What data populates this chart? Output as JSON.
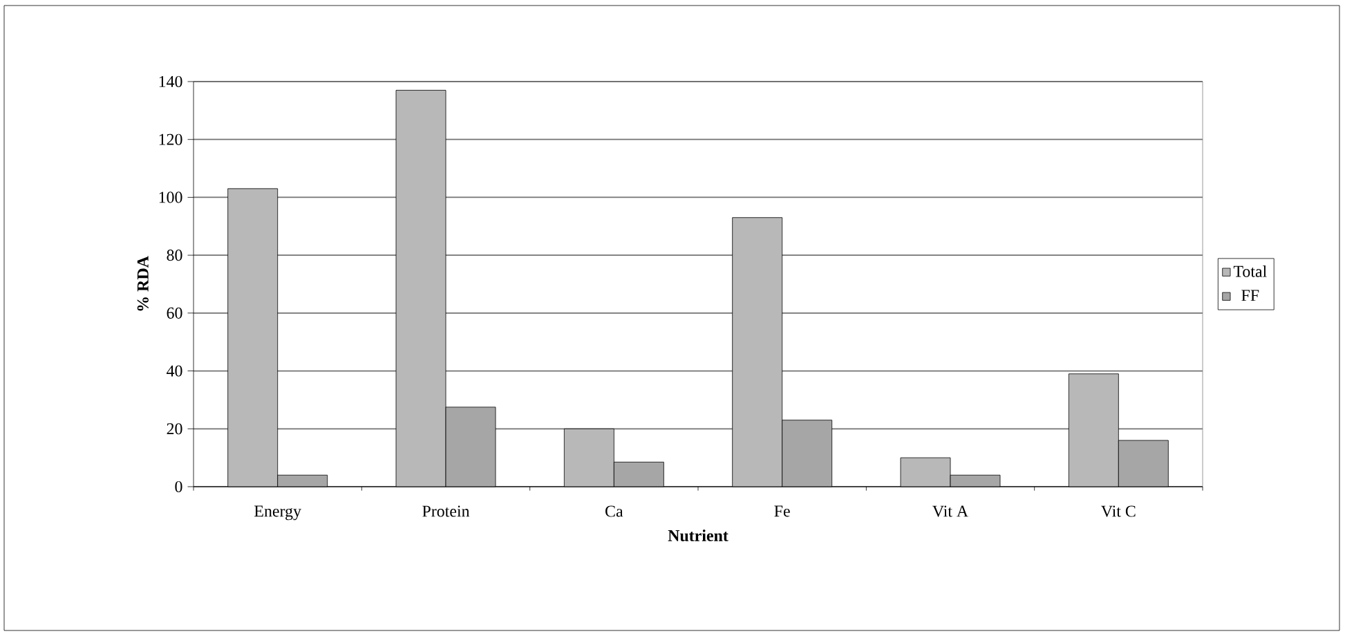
{
  "chart_data": {
    "type": "bar",
    "xlabel": "Nutrient",
    "ylabel": "% RDA",
    "categories": [
      "Energy",
      "Protein",
      "Ca",
      "Fe",
      "Vit A",
      "Vit C"
    ],
    "series": [
      {
        "name": "Total",
        "color": "#b8b8b8",
        "values": [
          103,
          137,
          20,
          93,
          10,
          39
        ]
      },
      {
        "name": "FF",
        "color": "#a6a6a6",
        "values": [
          4,
          27.5,
          8.5,
          23,
          4,
          16
        ]
      }
    ],
    "ylim": [
      0,
      140
    ],
    "yticks": [
      0,
      20,
      40,
      60,
      80,
      100,
      120,
      140
    ],
    "grid": "y",
    "legend": "right"
  }
}
